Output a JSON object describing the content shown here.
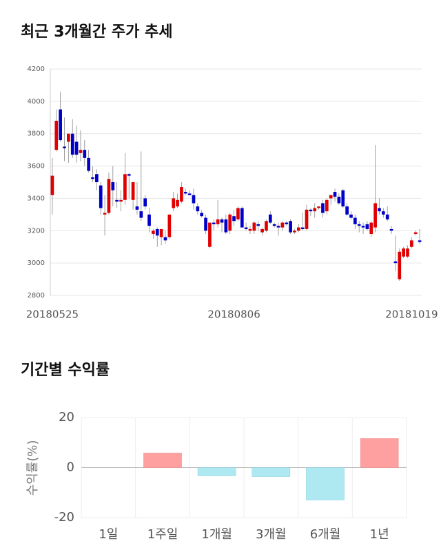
{
  "chart_data": [
    {
      "type": "candlestick",
      "title": "최근 3개월간 주가 추세",
      "categories": [
        "20180525",
        null,
        null,
        null,
        null,
        null,
        null,
        null,
        null,
        null,
        null,
        null,
        null,
        null,
        null,
        null,
        null,
        null,
        null,
        null,
        null,
        null,
        null,
        null,
        null,
        null,
        null,
        null,
        null,
        null,
        null,
        null,
        null,
        null,
        null,
        null,
        null,
        null,
        null,
        null,
        null,
        null,
        null,
        null,
        null,
        "20180806",
        null,
        null,
        null,
        null,
        null,
        null,
        null,
        null,
        null,
        null,
        null,
        null,
        null,
        null,
        null,
        null,
        null,
        null,
        null,
        null,
        null,
        null,
        null,
        null,
        null,
        null,
        null,
        null,
        null,
        null,
        null,
        null,
        null,
        null,
        null,
        null,
        null,
        null,
        null,
        null,
        null,
        null,
        null,
        "20181019",
        null,
        null
      ],
      "open": [
        3420,
        3700,
        3950,
        3720,
        3750,
        3800,
        3750,
        3680,
        3700,
        3650,
        3530,
        3550,
        3480,
        3300,
        3310,
        3500,
        3390,
        3380,
        3390,
        3550,
        3390,
        3350,
        3320,
        3400,
        3300,
        3180,
        3210,
        3160,
        3160,
        3160,
        3340,
        3350,
        3380,
        3440,
        3430,
        3420,
        3350,
        3310,
        3280,
        3100,
        3250,
        3240,
        3270,
        3270,
        3200,
        3290,
        3270,
        3340,
        3220,
        3200,
        3200,
        3240,
        3190,
        3200,
        3300,
        3240,
        3230,
        3220,
        3250,
        3260,
        3190,
        3200,
        3220,
        3210,
        3330,
        3320,
        3340,
        3370,
        3320,
        3400,
        3440,
        3410,
        3450,
        3350,
        3300,
        3280,
        3240,
        3230,
        3240,
        3180,
        3220,
        3340,
        3320,
        3300,
        3210,
        3010,
        2900,
        3040,
        3040,
        3100,
        3180,
        3140
      ],
      "high": [
        3650,
        3950,
        4060,
        3900,
        3800,
        3890,
        3850,
        3820,
        3760,
        3700,
        3600,
        3580,
        3500,
        3420,
        3560,
        3600,
        3500,
        3450,
        3680,
        3560,
        3500,
        3500,
        3690,
        3420,
        3340,
        3210,
        3220,
        3200,
        3200,
        3300,
        3440,
        3430,
        3500,
        3460,
        3450,
        3460,
        3370,
        3330,
        3300,
        3250,
        3270,
        3390,
        3280,
        3300,
        3310,
        3330,
        3350,
        3350,
        3250,
        3230,
        3260,
        3260,
        3220,
        3270,
        3320,
        3250,
        3250,
        3260,
        3260,
        3270,
        3210,
        3240,
        3310,
        3360,
        3340,
        3370,
        3350,
        3390,
        3400,
        3420,
        3460,
        3430,
        3460,
        3370,
        3320,
        3300,
        3260,
        3250,
        3260,
        3260,
        3730,
        3400,
        3340,
        3350,
        3230,
        3170,
        3090,
        3100,
        3110,
        3160,
        3200,
        3210
      ],
      "low": [
        3300,
        3690,
        3750,
        3630,
        3620,
        3650,
        3620,
        3630,
        3600,
        3560,
        3500,
        3450,
        3300,
        3170,
        3300,
        3350,
        3340,
        3320,
        3360,
        3400,
        3330,
        3300,
        3260,
        3330,
        3190,
        3150,
        3100,
        3110,
        3120,
        3150,
        3320,
        3340,
        3370,
        3420,
        3420,
        3330,
        3300,
        3280,
        3180,
        3090,
        3200,
        3220,
        3190,
        3180,
        3180,
        3230,
        3260,
        3220,
        3200,
        3180,
        3180,
        3200,
        3170,
        3190,
        3240,
        3220,
        3170,
        3200,
        3230,
        3180,
        3180,
        3190,
        3200,
        3200,
        3290,
        3280,
        3330,
        3280,
        3300,
        3360,
        3380,
        3360,
        3340,
        3290,
        3270,
        3210,
        3190,
        3180,
        3200,
        3160,
        3190,
        3300,
        3280,
        3260,
        3180,
        2950,
        2890,
        3030,
        3030,
        3090,
        3170,
        3120
      ],
      "close": [
        3540,
        3880,
        3760,
        3710,
        3800,
        3670,
        3670,
        3700,
        3650,
        3570,
        3520,
        3500,
        3340,
        3310,
        3520,
        3450,
        3380,
        3390,
        3550,
        3540,
        3500,
        3330,
        3280,
        3350,
        3230,
        3200,
        3170,
        3210,
        3140,
        3300,
        3400,
        3390,
        3470,
        3430,
        3420,
        3370,
        3320,
        3290,
        3200,
        3250,
        3240,
        3270,
        3250,
        3190,
        3300,
        3260,
        3340,
        3220,
        3210,
        3210,
        3250,
        3230,
        3210,
        3260,
        3250,
        3230,
        3220,
        3250,
        3240,
        3190,
        3200,
        3220,
        3210,
        3330,
        3320,
        3340,
        3350,
        3310,
        3390,
        3420,
        3410,
        3370,
        3350,
        3300,
        3280,
        3240,
        3230,
        3220,
        3210,
        3250,
        3370,
        3320,
        3300,
        3270,
        3200,
        3000,
        3070,
        3090,
        3090,
        3140,
        3190,
        3130
      ],
      "up_color": "#e00000",
      "down_color": "#0000c8",
      "ylim": [
        2800,
        4200
      ],
      "yticks": [
        2800,
        3000,
        3200,
        3400,
        3600,
        3800,
        4000,
        4200
      ],
      "grid": true
    },
    {
      "type": "bar",
      "title": "기간별 수익률",
      "y_label": "수익률(%)",
      "categories": [
        "1일",
        "1주일",
        "1개월",
        "3개월",
        "6개월",
        "1년"
      ],
      "values": [
        0,
        5.8,
        -3.3,
        -3.6,
        -13,
        11.6
      ],
      "positive_color": "#ffa0a0",
      "negative_color": "#aee9f2",
      "ylim": [
        -20,
        20
      ],
      "yticks": [
        -20,
        0,
        20
      ],
      "grid": true
    }
  ]
}
